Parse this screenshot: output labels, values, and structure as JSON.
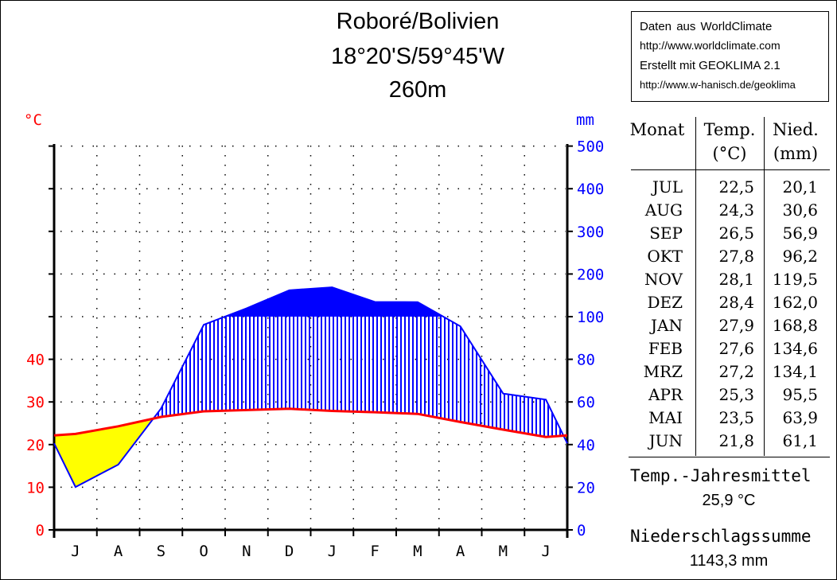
{
  "header": {
    "title_line1": "Roboré/Bolivien",
    "title_line2": "18°20'S/59°45'W",
    "title_line3": "260m"
  },
  "source": {
    "line1": "Daten  aus  WorldClimate",
    "line2": "http://www.worldclimate.com",
    "line3": "Erstellt mit  GEOKLIMA 2.1",
    "line4": "http://www.w-hanisch.de/geoklima"
  },
  "table": {
    "col_month": "Monat",
    "col_temp": "Temp.",
    "col_temp_unit": "(°C)",
    "col_precip": "Nied.",
    "col_precip_unit": "(mm)",
    "rows": [
      {
        "month": "JUL",
        "temp": "22,5",
        "precip": "20,1"
      },
      {
        "month": "AUG",
        "temp": "24,3",
        "precip": "30,6"
      },
      {
        "month": "SEP",
        "temp": "26,5",
        "precip": "56,9"
      },
      {
        "month": "OKT",
        "temp": "27,8",
        "precip": "96,2"
      },
      {
        "month": "NOV",
        "temp": "28,1",
        "precip": "119,5"
      },
      {
        "month": "DEZ",
        "temp": "28,4",
        "precip": "162,0"
      },
      {
        "month": "JAN",
        "temp": "27,9",
        "precip": "168,8"
      },
      {
        "month": "FEB",
        "temp": "27,6",
        "precip": "134,6"
      },
      {
        "month": "MRZ",
        "temp": "27,2",
        "precip": "134,1"
      },
      {
        "month": "APR",
        "temp": "25,3",
        "precip": "95,5"
      },
      {
        "month": "MAI",
        "temp": "23,5",
        "precip": "63,9"
      },
      {
        "month": "JUN",
        "temp": "21,8",
        "precip": "61,1"
      }
    ]
  },
  "summary": {
    "temp_label": "Temp.-Jahresmittel",
    "temp_value": "25,9 °C",
    "precip_label": "Niederschlagssumme",
    "precip_value": "1143,3 mm"
  },
  "colors": {
    "temperature": "#ff0000",
    "precipitation": "#0000ff",
    "arid": "#ffff00",
    "humid_fill": "#0000ff"
  },
  "chart_data": {
    "type": "line",
    "chart_kind": "Walter-Lieth climate diagram",
    "categories": [
      "J",
      "A",
      "S",
      "O",
      "N",
      "D",
      "J",
      "F",
      "M",
      "A",
      "M",
      "J"
    ],
    "temp_unit_label": "°C",
    "precip_unit_label": "mm",
    "series": [
      {
        "name": "Temp.",
        "axis": "left",
        "values": [
          22.5,
          24.3,
          26.5,
          27.8,
          28.1,
          28.4,
          27.9,
          27.6,
          27.2,
          25.3,
          23.5,
          21.8
        ]
      },
      {
        "name": "Nied.",
        "axis": "right",
        "values": [
          20.1,
          30.6,
          56.9,
          96.2,
          119.5,
          162.0,
          168.8,
          134.6,
          134.1,
          95.5,
          63.9,
          61.1
        ]
      }
    ],
    "left_ticks": [
      "0",
      "10",
      "20",
      "30",
      "40"
    ],
    "right_ticks": [
      "0",
      "20",
      "40",
      "60",
      "80",
      "100",
      "200",
      "300",
      "400",
      "500"
    ],
    "ylim_temp": [
      0,
      90
    ],
    "ylim_precip": [
      0,
      500
    ],
    "scale_note": "precipitation scale compressed above 100 mm",
    "grid": "dotted"
  }
}
